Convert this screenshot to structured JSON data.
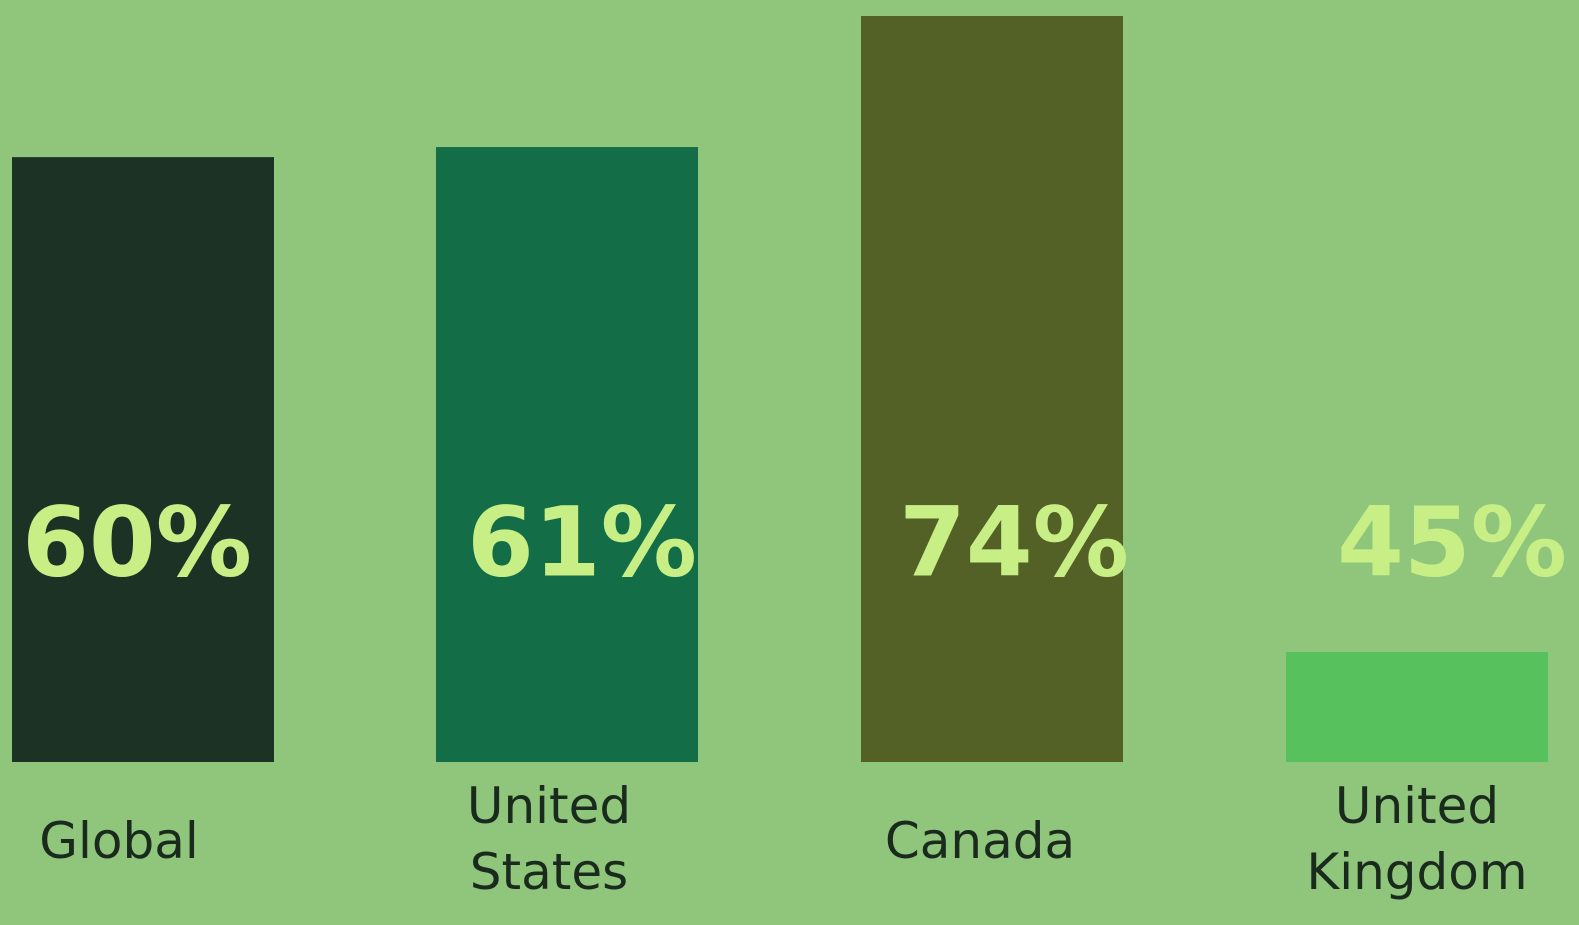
{
  "chart_data": {
    "type": "bar",
    "categories": [
      [
        "Global"
      ],
      [
        "United",
        "States"
      ],
      [
        "Canada"
      ],
      [
        "United",
        "Kingdom"
      ]
    ],
    "values": [
      60,
      61,
      74,
      45
    ],
    "value_labels": [
      "60%",
      "61%",
      "74%",
      "45%"
    ],
    "unit": "%",
    "title": "",
    "xlabel": "",
    "ylabel": "",
    "grid": false,
    "legend": "none"
  },
  "colors": {
    "background": "#8fc67c",
    "bars": [
      "#1b3225",
      "#136e47",
      "#536026",
      "#56c15d"
    ],
    "value_label": "#c8ef86",
    "category_label": "#1a2a1d"
  }
}
